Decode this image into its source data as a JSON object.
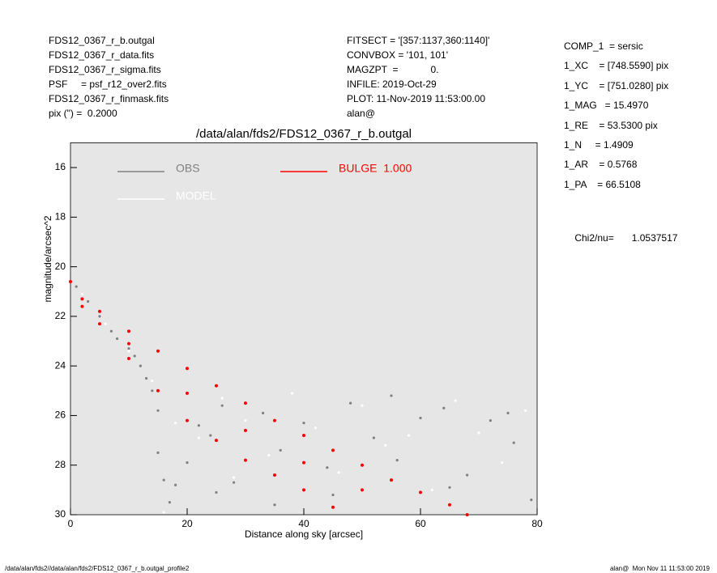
{
  "header": {
    "left": [
      "FDS12_0367_r_b.outgal",
      "FDS12_0367_r_data.fits",
      "FDS12_0367_r_sigma.fits",
      "PSF     = psf_r12_over2.fits",
      "FDS12_0367_r_finmask.fits",
      "pix (\") =  0.2000"
    ],
    "middle": [
      "FITSECT = '[357:1137,360:1140]'",
      "CONVBOX = '101, 101'",
      "MAGZPT  =            0.",
      "INFILE: 2019-Oct-29",
      "PLOT: 11-Nov-2019 11:53:00.00",
      "alan@"
    ],
    "right": [
      "COMP_1  = sersic",
      "1_XC    = [748.5590] pix",
      "1_YC    = [751.0280] pix",
      "1_MAG   = 15.4970",
      "1_RE    = 53.5300 pix",
      "1_N     = 1.4909",
      "1_AR    = 0.5768",
      "1_PA    = 66.5108"
    ],
    "chi2_label": "Chi2/nu=",
    "chi2_value": "1.0537517"
  },
  "chart_data": {
    "type": "scatter",
    "title": "/data/alan/fds2/FDS12_0367_r_b.outgal",
    "xlabel": "Distance along sky [arcsec]",
    "ylabel": "magnitude/arcsec^2",
    "xlim": [
      0,
      80
    ],
    "ylim": [
      30,
      15
    ],
    "xticks": [
      0,
      20,
      40,
      60,
      80
    ],
    "yticks": [
      16,
      18,
      20,
      22,
      24,
      26,
      28,
      30
    ],
    "background": "#e6e6e6",
    "series": [
      {
        "name": "OBS",
        "color": "#808080",
        "x": [
          1,
          3,
          5,
          7,
          8,
          10,
          11,
          12,
          13,
          14,
          15,
          15,
          16,
          17,
          18,
          20,
          22,
          24,
          26,
          28,
          30,
          33,
          36,
          40,
          44,
          48,
          52,
          56,
          60,
          64,
          68,
          72,
          76,
          79,
          25,
          35,
          45,
          55,
          65,
          75
        ],
        "values": [
          20.8,
          21.4,
          22,
          22.6,
          22.9,
          23.3,
          23.6,
          24,
          24.5,
          25,
          25.8,
          27.5,
          28.6,
          29.5,
          28.8,
          27.9,
          26.4,
          26.8,
          25.6,
          28.7,
          26.6,
          25.9,
          27.4,
          26.3,
          28.1,
          25.5,
          26.9,
          27.8,
          26.1,
          25.7,
          28.4,
          26.2,
          27.1,
          29.4,
          29.1,
          29.6,
          29.2,
          25.2,
          28.9,
          25.9
        ]
      },
      {
        "name": "MODEL",
        "color": "#ffffff",
        "x": [
          2,
          6,
          10,
          14,
          18,
          22,
          26,
          30,
          34,
          38,
          42,
          46,
          50,
          54,
          58,
          62,
          66,
          70,
          74,
          78,
          16,
          28
        ],
        "values": [
          21.1,
          22.3,
          23.4,
          24.6,
          26.3,
          26.9,
          25.3,
          26.2,
          27.6,
          25.1,
          26.5,
          28.3,
          25.6,
          27.2,
          26.8,
          29,
          25.4,
          26.7,
          27.9,
          25.8,
          29.9,
          28.5
        ]
      },
      {
        "name": "BULGE  1.000",
        "color": "#ff0000",
        "x": [
          0,
          2,
          2,
          5,
          5,
          10,
          10,
          15,
          15,
          20,
          20,
          25,
          25,
          30,
          30,
          35,
          35,
          40,
          40,
          45,
          45,
          50,
          55,
          60,
          65,
          68,
          10,
          20,
          30,
          40,
          50
        ],
        "values": [
          20.6,
          21.3,
          21.6,
          21.8,
          22.3,
          22.6,
          23.7,
          23.4,
          25.0,
          24.1,
          26.2,
          24.8,
          27.0,
          25.5,
          27.8,
          26.2,
          28.4,
          26.8,
          29.0,
          27.4,
          29.7,
          28.0,
          28.6,
          29.1,
          29.6,
          30.0,
          23.1,
          25.1,
          26.6,
          27.9,
          29.0
        ]
      }
    ]
  },
  "footer": {
    "left": "/data/alan/fds2//data/alan/fds2/FDS12_0367_r_b.outgal_profile2",
    "right": "alan@  Mon Nov 11 11:53:00 2019"
  }
}
